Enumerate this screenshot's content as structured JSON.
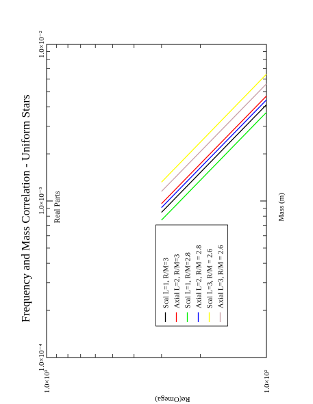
{
  "chart_data": {
    "type": "line",
    "title": "Frequency and Mass Correlation - Uniform Stars",
    "subtitle": "Real Parts",
    "xlabel": "Re(Omega)",
    "ylabel": "Mass (m)",
    "x_scale": "log",
    "y_scale": "log",
    "xlim": [
      0.0001,
      0.01
    ],
    "ylim": [
      100,
      1000
    ],
    "x_ticks": [
      {
        "value": 0.01,
        "label": "1.0×10⁻²"
      },
      {
        "value": 0.001,
        "label": "1.0×10⁻³"
      },
      {
        "value": 0.0001,
        "label": "1.0×10⁻⁴"
      }
    ],
    "y_ticks": [
      {
        "value": 100,
        "label": "1.0×10²"
      },
      {
        "value": 1000,
        "label": "1.0×10³"
      }
    ],
    "grid": false,
    "legend_position": "lower-middle",
    "series": [
      {
        "name": "Scal L=1, R/M=3",
        "color": "#000000",
        "x": [
          0.00412,
          0.000845
        ],
        "y": [
          100,
          300
        ]
      },
      {
        "name": "Axial L=2, R/M=3",
        "color": "#ff0000",
        "x": [
          0.00468,
          0.000962
        ],
        "y": [
          100,
          300
        ]
      },
      {
        "name": "Scal L=1, R/M=2.8",
        "color": "#00ee00",
        "x": [
          0.00368,
          0.000755
        ],
        "y": [
          100,
          300
        ]
      },
      {
        "name": "Axial L=2, R/M = 2.8",
        "color": "#0000ff",
        "x": [
          0.00442,
          0.000907
        ],
        "y": [
          100,
          300
        ]
      },
      {
        "name": "Scal L=3, R/M = 2.6",
        "color": "#ffff00",
        "x": [
          0.00645,
          0.00132
        ],
        "y": [
          100,
          300
        ]
      },
      {
        "name": "Axial L=3, R/M = 2.6",
        "color": "#c8a0a8",
        "x": [
          0.0056,
          0.00115
        ],
        "y": [
          100,
          300
        ]
      }
    ]
  }
}
